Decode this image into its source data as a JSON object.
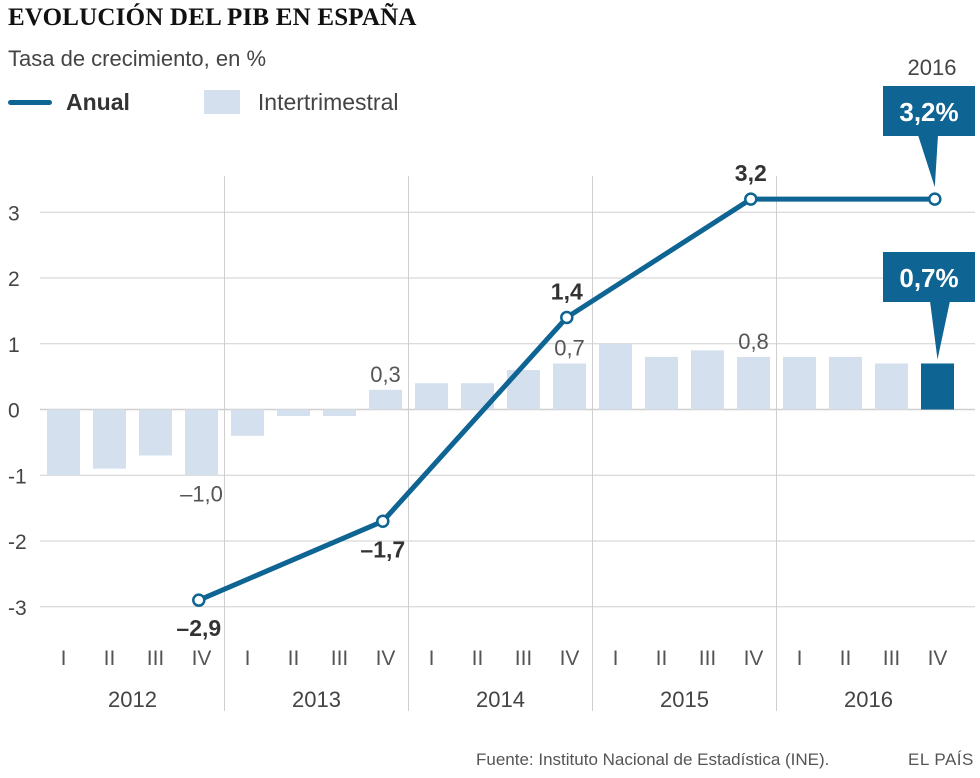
{
  "header": {
    "title": "EVOLUCIÓN DEL PIB EN ESPAÑA",
    "subtitle": "Tasa de crecimiento, en %"
  },
  "legend": {
    "annual": "Anual",
    "quarterly": "Intertrimestral"
  },
  "footer": {
    "source": "Fuente: Instituto Nacional de Estadística (INE).",
    "brand": "EL PAÍS"
  },
  "colors": {
    "line": "#0e6493",
    "bar": "#d5e0ee",
    "highlight_bar": "#0e6493",
    "grid": "#cfcfcf",
    "callout_bg": "#0e6493"
  },
  "chart_data": {
    "type": "bar",
    "title": "EVOLUCIÓN DEL PIB EN ESPAÑA",
    "subtitle": "Tasa de crecimiento, en %",
    "ylim": [
      -4,
      3.6
    ],
    "yticks": [
      "3",
      "2",
      "1",
      "0",
      "-1",
      "-2",
      "-3"
    ],
    "ytick_values": [
      3,
      2,
      1,
      0,
      -1,
      -2,
      -3
    ],
    "quarters": [
      "I",
      "II",
      "III",
      "IV",
      "I",
      "II",
      "III",
      "IV",
      "I",
      "II",
      "III",
      "IV",
      "I",
      "II",
      "III",
      "IV",
      "I",
      "II",
      "III",
      "IV"
    ],
    "years": [
      "2012",
      "2013",
      "2014",
      "2015",
      "2016"
    ],
    "series": [
      {
        "name": "Intertrimestral",
        "kind": "bar",
        "values": [
          -1.0,
          -0.9,
          -0.7,
          -1.0,
          -0.4,
          -0.1,
          -0.1,
          0.3,
          0.4,
          0.4,
          0.6,
          0.7,
          1.0,
          0.8,
          0.9,
          0.8,
          0.8,
          0.8,
          0.7,
          0.7
        ]
      },
      {
        "name": "Anual",
        "kind": "line",
        "points": [
          {
            "quarter_index": 3.3,
            "value": -2.9
          },
          {
            "quarter_index": 7.3,
            "value": -1.7
          },
          {
            "quarter_index": 11.3,
            "value": 1.4
          },
          {
            "quarter_index": 15.3,
            "value": 3.2
          },
          {
            "quarter_index": 19.3,
            "value": 3.2
          }
        ]
      }
    ],
    "bar_labels": [
      {
        "index": 3,
        "text": "–1,0"
      },
      {
        "index": 7,
        "text": "0,3"
      },
      {
        "index": 11,
        "text": "0,7"
      },
      {
        "index": 15,
        "text": "0,8"
      }
    ],
    "line_labels": [
      {
        "index": 0,
        "text": "–2,9"
      },
      {
        "index": 1,
        "text": "–1,7"
      },
      {
        "index": 2,
        "text": "1,4"
      },
      {
        "index": 3,
        "text": "3,2"
      }
    ],
    "callouts": {
      "annual_year": "2016",
      "annual_value": "3,2%",
      "quarter_value": "0,7%"
    }
  }
}
